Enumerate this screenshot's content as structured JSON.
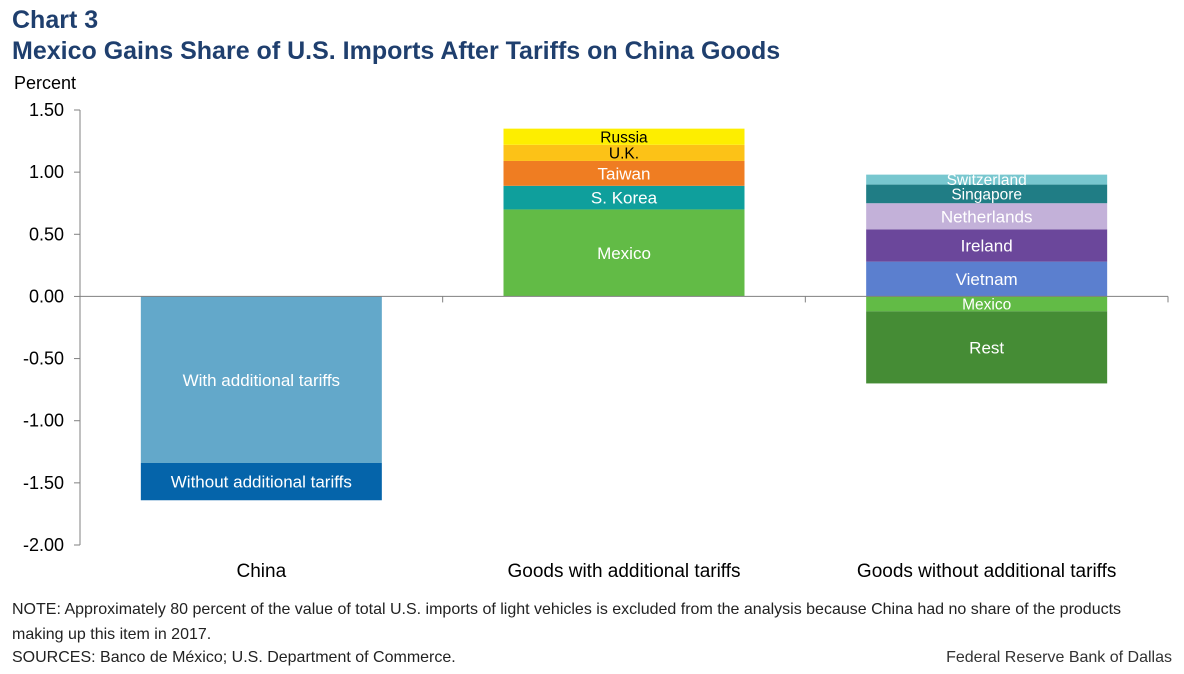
{
  "header": {
    "chart_number": "Chart 3",
    "title": "Mexico Gains Share of U.S. Imports After Tariffs on China Goods"
  },
  "footer": {
    "note": "NOTE: Approximately  80 percent of the value of total U.S. imports of light vehicles is excluded from the analysis because China had no share of the products making up this item in 2017.",
    "sources": "SOURCES: Banco de México; U.S. Department of Commerce.",
    "credit": "Federal Reserve Bank of Dallas"
  },
  "chart_data": {
    "type": "bar",
    "stacked": true,
    "ylabel": "Percent",
    "ylim": [
      -2.0,
      1.5
    ],
    "yticks": [
      1.5,
      1.0,
      0.5,
      0.0,
      -0.5,
      -1.0,
      -1.5,
      -2.0
    ],
    "ytick_labels": [
      "1.50",
      "1.00",
      "0.50",
      "0.00",
      "-0.50",
      "-1.00",
      "-1.50",
      "-2.00"
    ],
    "grid": false,
    "legend": "none",
    "categories": [
      "China",
      "Goods with additional tariffs",
      "Goods without additional tariffs"
    ],
    "bars": [
      {
        "category": "China",
        "segments": [
          {
            "label": "With additional tariffs",
            "value": -1.34,
            "color": "#63a8ca",
            "label_color": "#ffffff"
          },
          {
            "label": "Without additional tariffs",
            "value": -0.3,
            "color": "#0564aa",
            "label_color": "#ffffff"
          }
        ]
      },
      {
        "category": "Goods with additional tariffs",
        "segments": [
          {
            "label": "Mexico",
            "value": 0.7,
            "color": "#62bb46",
            "label_color": "#ffffff"
          },
          {
            "label": "S. Korea",
            "value": 0.19,
            "color": "#0f9f9c",
            "label_color": "#ffffff"
          },
          {
            "label": "Taiwan",
            "value": 0.2,
            "color": "#ef7d22",
            "label_color": "#ffffff"
          },
          {
            "label": "U.K.",
            "value": 0.13,
            "color": "#fcc217",
            "label_color": "#000000"
          },
          {
            "label": "Russia",
            "value": 0.13,
            "color": "#fdee00",
            "label_color": "#000000"
          }
        ]
      },
      {
        "category": "Goods without additional tariffs",
        "segments": [
          {
            "label": "Vietnam",
            "value": 0.28,
            "color": "#5b7fcf",
            "label_color": "#ffffff"
          },
          {
            "label": "Ireland",
            "value": 0.26,
            "color": "#6b479b",
            "label_color": "#ffffff"
          },
          {
            "label": "Netherlands",
            "value": 0.21,
            "color": "#c3b1d9",
            "label_color": "#ffffff"
          },
          {
            "label": "Singapore",
            "value": 0.15,
            "color": "#207d85",
            "label_color": "#ffffff"
          },
          {
            "label": "Switzerland",
            "value": 0.08,
            "color": "#78c7cf",
            "label_color": "#ffffff"
          },
          {
            "label": "Mexico",
            "value": -0.12,
            "color": "#62bb46",
            "label_color": "#ffffff"
          },
          {
            "label": "Rest",
            "value": -0.58,
            "color": "#458c35",
            "label_color": "#ffffff"
          }
        ]
      }
    ]
  }
}
